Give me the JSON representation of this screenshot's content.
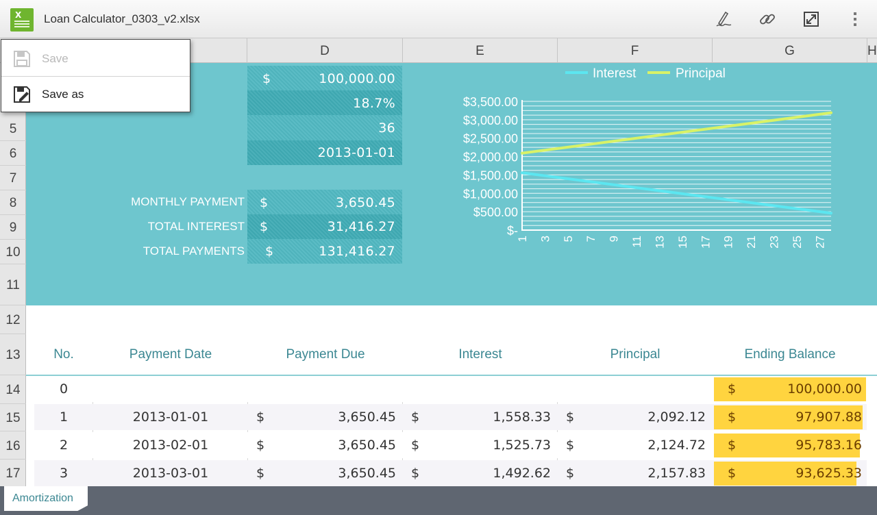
{
  "app": {
    "title": "Loan Calculator_0303_v2.xlsx",
    "icon": "excel-app-icon",
    "toolbar": [
      {
        "name": "pen-icon"
      },
      {
        "name": "link-icon"
      },
      {
        "name": "fullscreen-icon"
      },
      {
        "name": "overflow-menu-icon"
      }
    ]
  },
  "menu": {
    "items": [
      {
        "label": "Save",
        "icon": "save-icon",
        "enabled": false
      },
      {
        "label": "Save as",
        "icon": "save-as-icon",
        "enabled": true
      }
    ]
  },
  "columns": [
    "D",
    "E",
    "F",
    "G",
    "H"
  ],
  "rows": [
    "5",
    "6",
    "7",
    "8",
    "9",
    "10",
    "11",
    "12",
    "13",
    "14",
    "15",
    "16",
    "17"
  ],
  "summary": {
    "inputs": [
      {
        "currency": "$",
        "value": "100,000.00"
      },
      {
        "currency": "",
        "value": "18.7%"
      },
      {
        "currency": "",
        "value": "36"
      },
      {
        "currency": "",
        "value": "2013-01-01"
      }
    ],
    "results": [
      {
        "label": "MONTHLY PAYMENT",
        "currency": "$",
        "value": "3,650.45"
      },
      {
        "label": "TOTAL INTEREST",
        "currency": "$",
        "value": "31,416.27"
      },
      {
        "label": "TOTAL PAYMENTS",
        "currency": "$",
        "value": "131,416.27"
      }
    ]
  },
  "chart_data": {
    "type": "line",
    "legend": [
      "Interest",
      "Principal"
    ],
    "legend_position": "top",
    "y_ticks": [
      "$3,500.00",
      "$3,000.00",
      "$2,500.00",
      "$2,000.00",
      "$1,500.00",
      "$1,000.00",
      "$500.00",
      "$-"
    ],
    "ylim": [
      0,
      3500
    ],
    "x_ticks": [
      "1",
      "3",
      "5",
      "7",
      "9",
      "11",
      "13",
      "15",
      "17",
      "19",
      "21",
      "23",
      "25",
      "27"
    ],
    "xlim": [
      1,
      28
    ],
    "grid": true,
    "series": [
      {
        "name": "Interest",
        "color": "#5ce6f0",
        "x": [
          1,
          28
        ],
        "y": [
          1558.33,
          460
        ]
      },
      {
        "name": "Principal",
        "color": "#d8f267",
        "x": [
          1,
          28
        ],
        "y": [
          2092.12,
          3190
        ]
      }
    ]
  },
  "table": {
    "headers": [
      "No.",
      "Payment Date",
      "Payment Due",
      "Interest",
      "Principal",
      "Ending Balance"
    ],
    "rows": [
      {
        "no": "0",
        "date": "",
        "due_cur": "",
        "due": "",
        "int_cur": "",
        "interest": "",
        "pr_cur": "",
        "principal": "",
        "bal_cur": "$",
        "balance": "100,000.00",
        "fill": 1.0
      },
      {
        "no": "1",
        "date": "2013-01-01",
        "due_cur": "$",
        "due": "3,650.45",
        "int_cur": "$",
        "interest": "1,558.33",
        "pr_cur": "$",
        "principal": "2,092.12",
        "bal_cur": "$",
        "balance": "97,907.88",
        "fill": 0.979
      },
      {
        "no": "2",
        "date": "2013-02-01",
        "due_cur": "$",
        "due": "3,650.45",
        "int_cur": "$",
        "interest": "1,525.73",
        "pr_cur": "$",
        "principal": "2,124.72",
        "bal_cur": "$",
        "balance": "95,783.16",
        "fill": 0.958
      },
      {
        "no": "3",
        "date": "2013-03-01",
        "due_cur": "$",
        "due": "3,650.45",
        "int_cur": "$",
        "interest": "1,492.62",
        "pr_cur": "$",
        "principal": "2,157.83",
        "bal_cur": "$",
        "balance": "93,625.33",
        "fill": 0.936
      }
    ]
  },
  "sheet_tab": "Amortization",
  "colors": {
    "teal": "#6ec6ce",
    "header_text": "#3b8792",
    "balance_bar": "#ffd43f",
    "bottom_bar": "#5f6671"
  }
}
